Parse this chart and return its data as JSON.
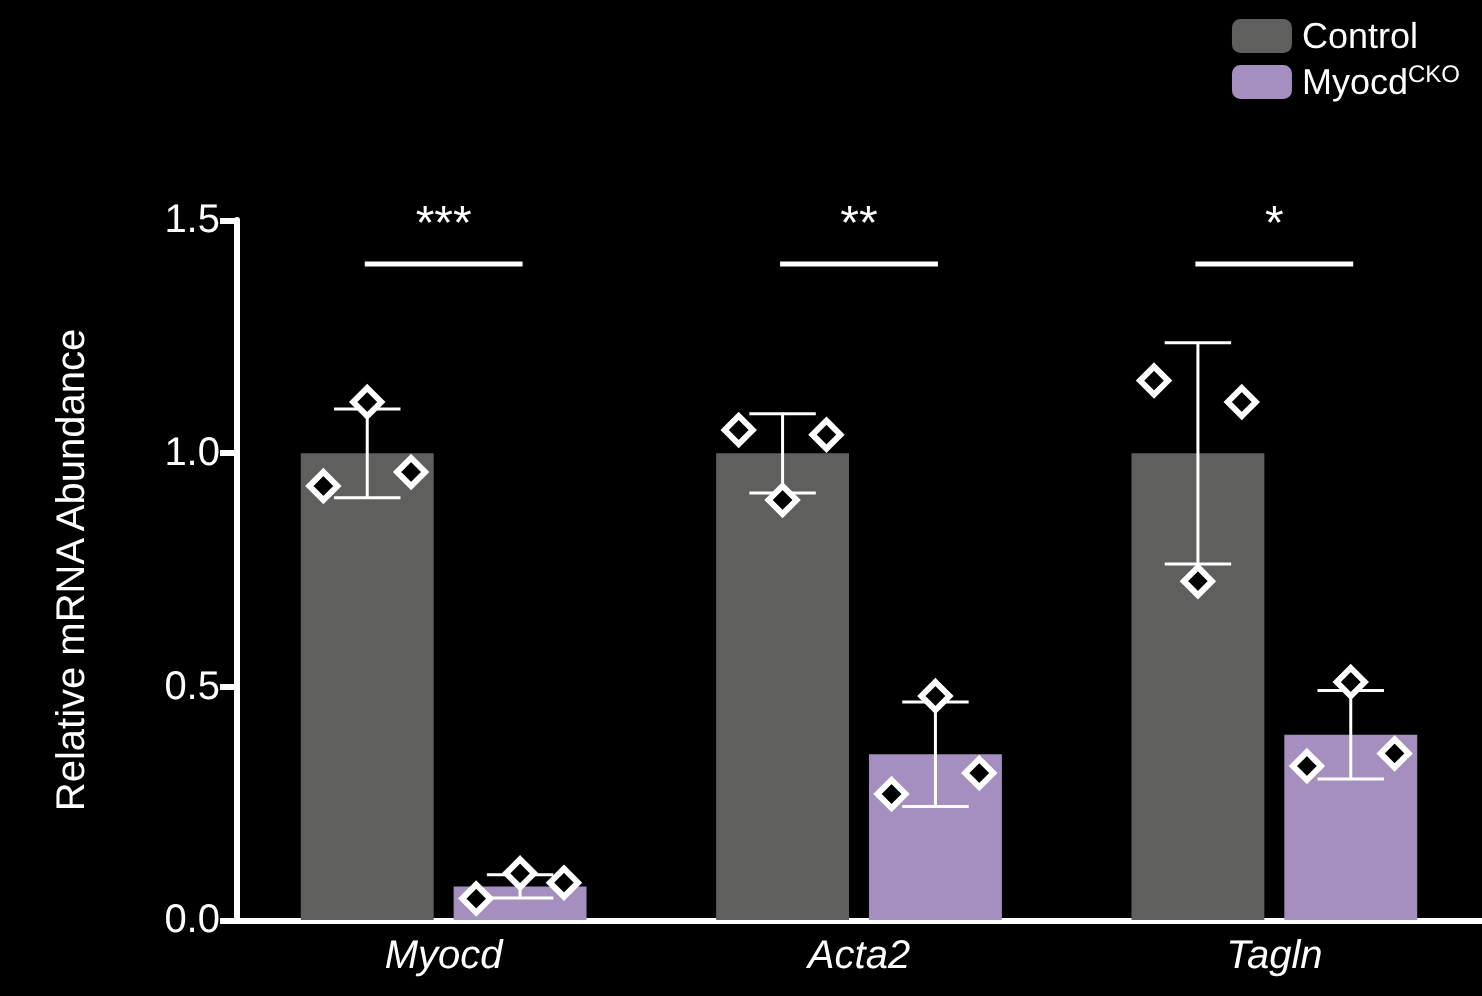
{
  "chart_data": {
    "type": "bar",
    "ylabel": "Relative mRNA Abundance",
    "categories": [
      "Myocd",
      "Acta2",
      "Tagln"
    ],
    "series": [
      {
        "name": "Control",
        "color": "#5f5f5d",
        "values": [
          1.0,
          1.0,
          1.0
        ],
        "errors": [
          0.095,
          0.085,
          0.237
        ]
      },
      {
        "name": "Myocd$^{CKO}$",
        "color": "#a58fbf",
        "values": [
          0.072,
          0.355,
          0.397
        ],
        "errors": [
          0.025,
          0.112,
          0.095
        ]
      },
      {
        "type": "scatter",
        "color": "#ffffff",
        "x": [
          "Myocd",
          "Myocd",
          "Myocd",
          "Acta2",
          "Acta2",
          "Acta2",
          "Tagln",
          "Tagln",
          "Tagln"
        ],
        "values": [
          0.93,
          1.11,
          0.96,
          1.05,
          0.9,
          1.04,
          1.156,
          0.726,
          1.11
        ]
      },
      {
        "type": "scatter",
        "color": "#ffffff",
        "x": [
          "Myocd",
          "Myocd",
          "Myocd",
          "Acta2",
          "Acta2",
          "Acta2",
          "Tagln",
          "Tagln",
          "Tagln"
        ],
        "values": [
          0.046,
          0.1,
          0.08,
          0.27,
          0.48,
          0.315,
          0.33,
          0.51,
          0.357
        ]
      }
    ],
    "ylim": [
      0,
      1.5
    ],
    "yticks": [
      {
        "value": 0,
        "label": "0.0"
      },
      0.5,
      {
        "value": 1,
        "label": "1.0"
      },
      1.5
    ],
    "marker": "diamond",
    "legend": "top right",
    "grid": false,
    "annotations": [
      "***",
      "**",
      "*"
    ]
  }
}
